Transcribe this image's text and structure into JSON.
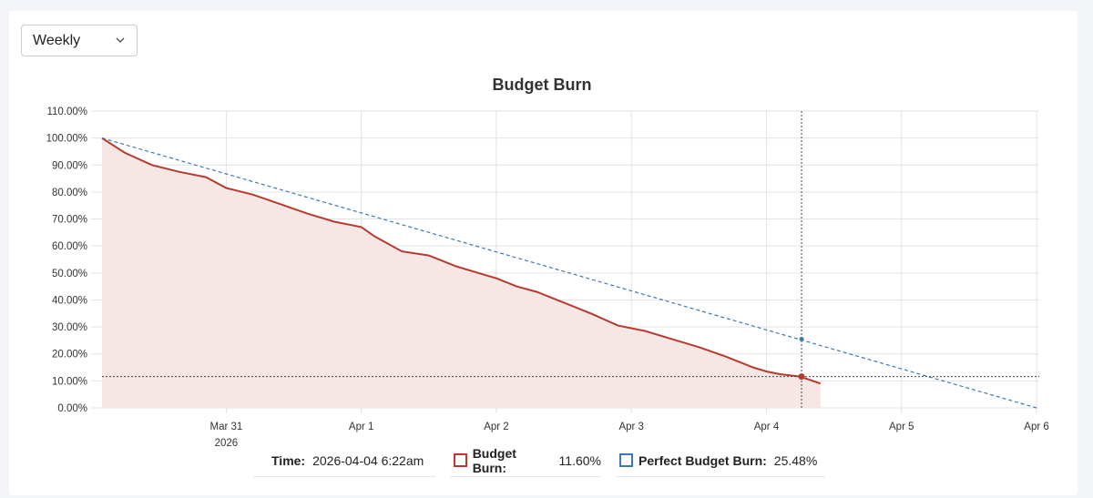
{
  "controls": {
    "range_select": {
      "selected": "Weekly"
    }
  },
  "chart_data": {
    "type": "area",
    "title": "Budget Burn",
    "xlabel": "",
    "ylabel": "",
    "y_ticks": [
      "0.00%",
      "10.00%",
      "20.00%",
      "30.00%",
      "40.00%",
      "50.00%",
      "60.00%",
      "70.00%",
      "80.00%",
      "90.00%",
      "100.00%",
      "110.00%"
    ],
    "ylim": [
      0,
      110
    ],
    "x_ticks": [
      {
        "label": "Mar 31",
        "sublabel": "2026",
        "day": 1
      },
      {
        "label": "Apr 1",
        "sublabel": "",
        "day": 2
      },
      {
        "label": "Apr 2",
        "sublabel": "",
        "day": 3
      },
      {
        "label": "Apr 3",
        "sublabel": "",
        "day": 4
      },
      {
        "label": "Apr 4",
        "sublabel": "",
        "day": 5
      },
      {
        "label": "Apr 5",
        "sublabel": "",
        "day": 6
      },
      {
        "label": "Apr 6",
        "sublabel": "",
        "day": 7
      }
    ],
    "xlim_days": [
      0.08,
      7.02
    ],
    "grid": true,
    "series": [
      {
        "name": "Budget Burn",
        "color": "#b83a2e",
        "fill": "#f6e6e4",
        "style": "solid",
        "x": [
          0.08,
          0.25,
          0.45,
          0.65,
          0.85,
          1.0,
          1.2,
          1.4,
          1.6,
          1.8,
          2.0,
          2.1,
          2.3,
          2.5,
          2.7,
          2.9,
          3.0,
          3.15,
          3.3,
          3.5,
          3.7,
          3.9,
          4.1,
          4.3,
          4.5,
          4.7,
          4.9,
          5.0,
          5.1,
          5.25,
          5.4
        ],
        "y": [
          100.0,
          94.5,
          90.0,
          87.5,
          85.5,
          81.5,
          79.0,
          75.5,
          72.0,
          69.0,
          67.0,
          63.5,
          58.0,
          56.5,
          52.5,
          49.5,
          48.0,
          45.0,
          43.0,
          39.0,
          35.0,
          30.5,
          28.5,
          25.5,
          22.5,
          19.0,
          15.0,
          13.5,
          12.5,
          11.6,
          9.0
        ]
      },
      {
        "name": "Perfect Budget Burn",
        "color": "#3e78b2",
        "style": "dashed",
        "x": [
          0.08,
          7.0
        ],
        "y": [
          100.0,
          0.0
        ]
      }
    ],
    "crosshair": {
      "day": 5.26,
      "budget_burn": 11.6,
      "perfect_budget_burn": 25.48
    },
    "tooltip": {
      "time_label": "Time:",
      "time_value": "2026-04-04 6:22am",
      "budget_burn_label": "Budget Burn:",
      "budget_burn_value": "11.60%",
      "perfect_label": "Perfect Budget Burn:",
      "perfect_value": "25.48%"
    }
  }
}
